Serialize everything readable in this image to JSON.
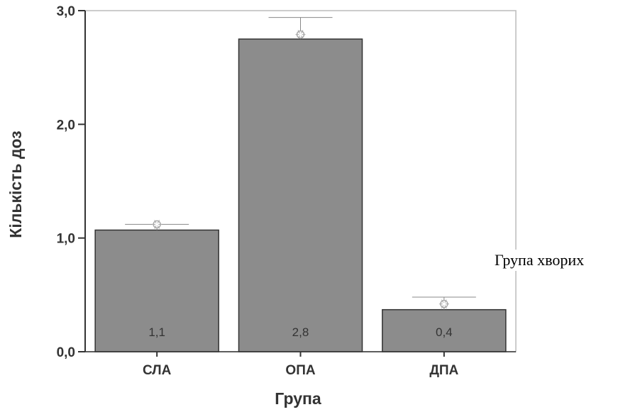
{
  "top_caption_fragment": "",
  "side_note": "Група хворих",
  "colors": {
    "bar": "#8c8c8c",
    "bar_stroke": "#333333",
    "axis": "#333333",
    "frame": "#bbbbbb",
    "marker": "#aaaaaa"
  },
  "chart_data": {
    "type": "bar",
    "title": "",
    "xlabel": "Група",
    "ylabel": "Кількість доз",
    "categories": [
      "СЛА",
      "ОПА",
      "ДПА"
    ],
    "values": [
      1.07,
      2.75,
      0.37
    ],
    "data_labels": [
      "1,1",
      "2,8",
      "0,4"
    ],
    "error_upper": [
      1.12,
      2.94,
      0.48
    ],
    "markers": [
      1.12,
      2.79,
      0.42
    ],
    "ylim": [
      0,
      3.0
    ],
    "yticks": [
      0,
      1,
      2,
      3
    ],
    "ytick_labels": [
      "0,0",
      "1,0",
      "2,0",
      "3,0"
    ],
    "grid": false,
    "legend": "none"
  }
}
